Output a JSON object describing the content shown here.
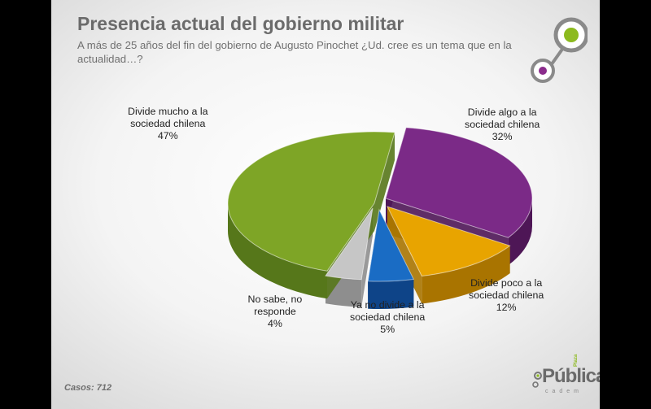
{
  "header": {
    "title": "Presencia actual del gobierno militar",
    "subtitle": "A más de 25 años del fin del gobierno de Augusto Pinochet ¿Ud. cree es un tema que en la actualidad…?"
  },
  "footer": {
    "casos": "Casos: 712"
  },
  "brand": {
    "name": "Pública",
    "tag": "Plaza",
    "sub": "cadem"
  },
  "chart_data": {
    "type": "pie",
    "title": "Presencia actual del gobierno militar",
    "slices": [
      {
        "label_lines": [
          "Divide algo a la",
          "sociedad chilena"
        ],
        "value": 32,
        "value_label": "32%",
        "color": "#7b2a87",
        "side": "#4e1656"
      },
      {
        "label_lines": [
          "Divide poco a la",
          "sociedad chilena"
        ],
        "value": 12,
        "value_label": "12%",
        "color": "#e8a400",
        "side": "#a97400"
      },
      {
        "label_lines": [
          "Ya no divide a la",
          "sociedad chilena"
        ],
        "value": 5,
        "value_label": "5%",
        "color": "#1a6cc4",
        "side": "#0e4488"
      },
      {
        "label_lines": [
          "No sabe, no",
          "responde"
        ],
        "value": 4,
        "value_label": "4%",
        "color": "#c6c6c6",
        "side": "#8e8e8e"
      },
      {
        "label_lines": [
          "Divide mucho a la",
          "sociedad chilena"
        ],
        "value": 47,
        "value_label": "47%",
        "color": "#7ea526",
        "side": "#56771a"
      }
    ]
  }
}
